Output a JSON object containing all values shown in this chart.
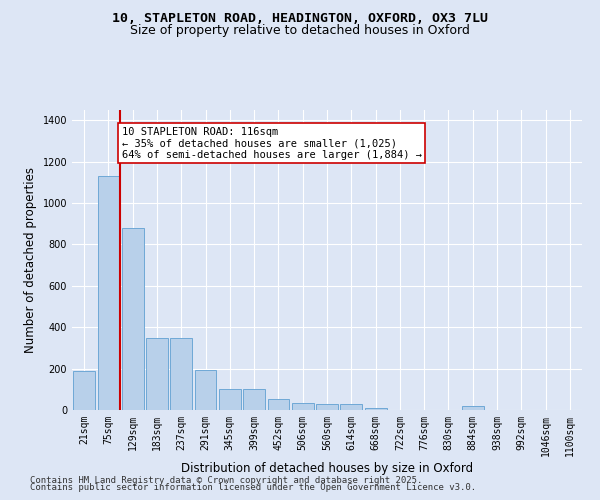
{
  "title_line1": "10, STAPLETON ROAD, HEADINGTON, OXFORD, OX3 7LU",
  "title_line2": "Size of property relative to detached houses in Oxford",
  "xlabel": "Distribution of detached houses by size in Oxford",
  "ylabel": "Number of detached properties",
  "categories": [
    "21sqm",
    "75sqm",
    "129sqm",
    "183sqm",
    "237sqm",
    "291sqm",
    "345sqm",
    "399sqm",
    "452sqm",
    "506sqm",
    "560sqm",
    "614sqm",
    "668sqm",
    "722sqm",
    "776sqm",
    "830sqm",
    "884sqm",
    "938sqm",
    "992sqm",
    "1046sqm",
    "1100sqm"
  ],
  "values": [
    190,
    1130,
    880,
    350,
    350,
    195,
    100,
    100,
    55,
    35,
    30,
    30,
    10,
    0,
    0,
    0,
    20,
    0,
    0,
    0,
    0
  ],
  "bar_color": "#b8d0ea",
  "bar_edge_color": "#6fa8d6",
  "vline_color": "#cc0000",
  "vline_pos": 1.48,
  "annotation_text": "10 STAPLETON ROAD: 116sqm\n← 35% of detached houses are smaller (1,025)\n64% of semi-detached houses are larger (1,884) →",
  "annotation_box_color": "#ffffff",
  "annotation_box_edge_color": "#cc0000",
  "ylim": [
    0,
    1450
  ],
  "yticks": [
    0,
    200,
    400,
    600,
    800,
    1000,
    1200,
    1400
  ],
  "background_color": "#dde6f5",
  "plot_bg_color": "#dde6f5",
  "grid_color": "#ffffff",
  "footer_line1": "Contains HM Land Registry data © Crown copyright and database right 2025.",
  "footer_line2": "Contains public sector information licensed under the Open Government Licence v3.0.",
  "title_fontsize": 9.5,
  "subtitle_fontsize": 9,
  "axis_label_fontsize": 8.5,
  "tick_fontsize": 7,
  "annotation_fontsize": 7.5,
  "footer_fontsize": 6.5
}
